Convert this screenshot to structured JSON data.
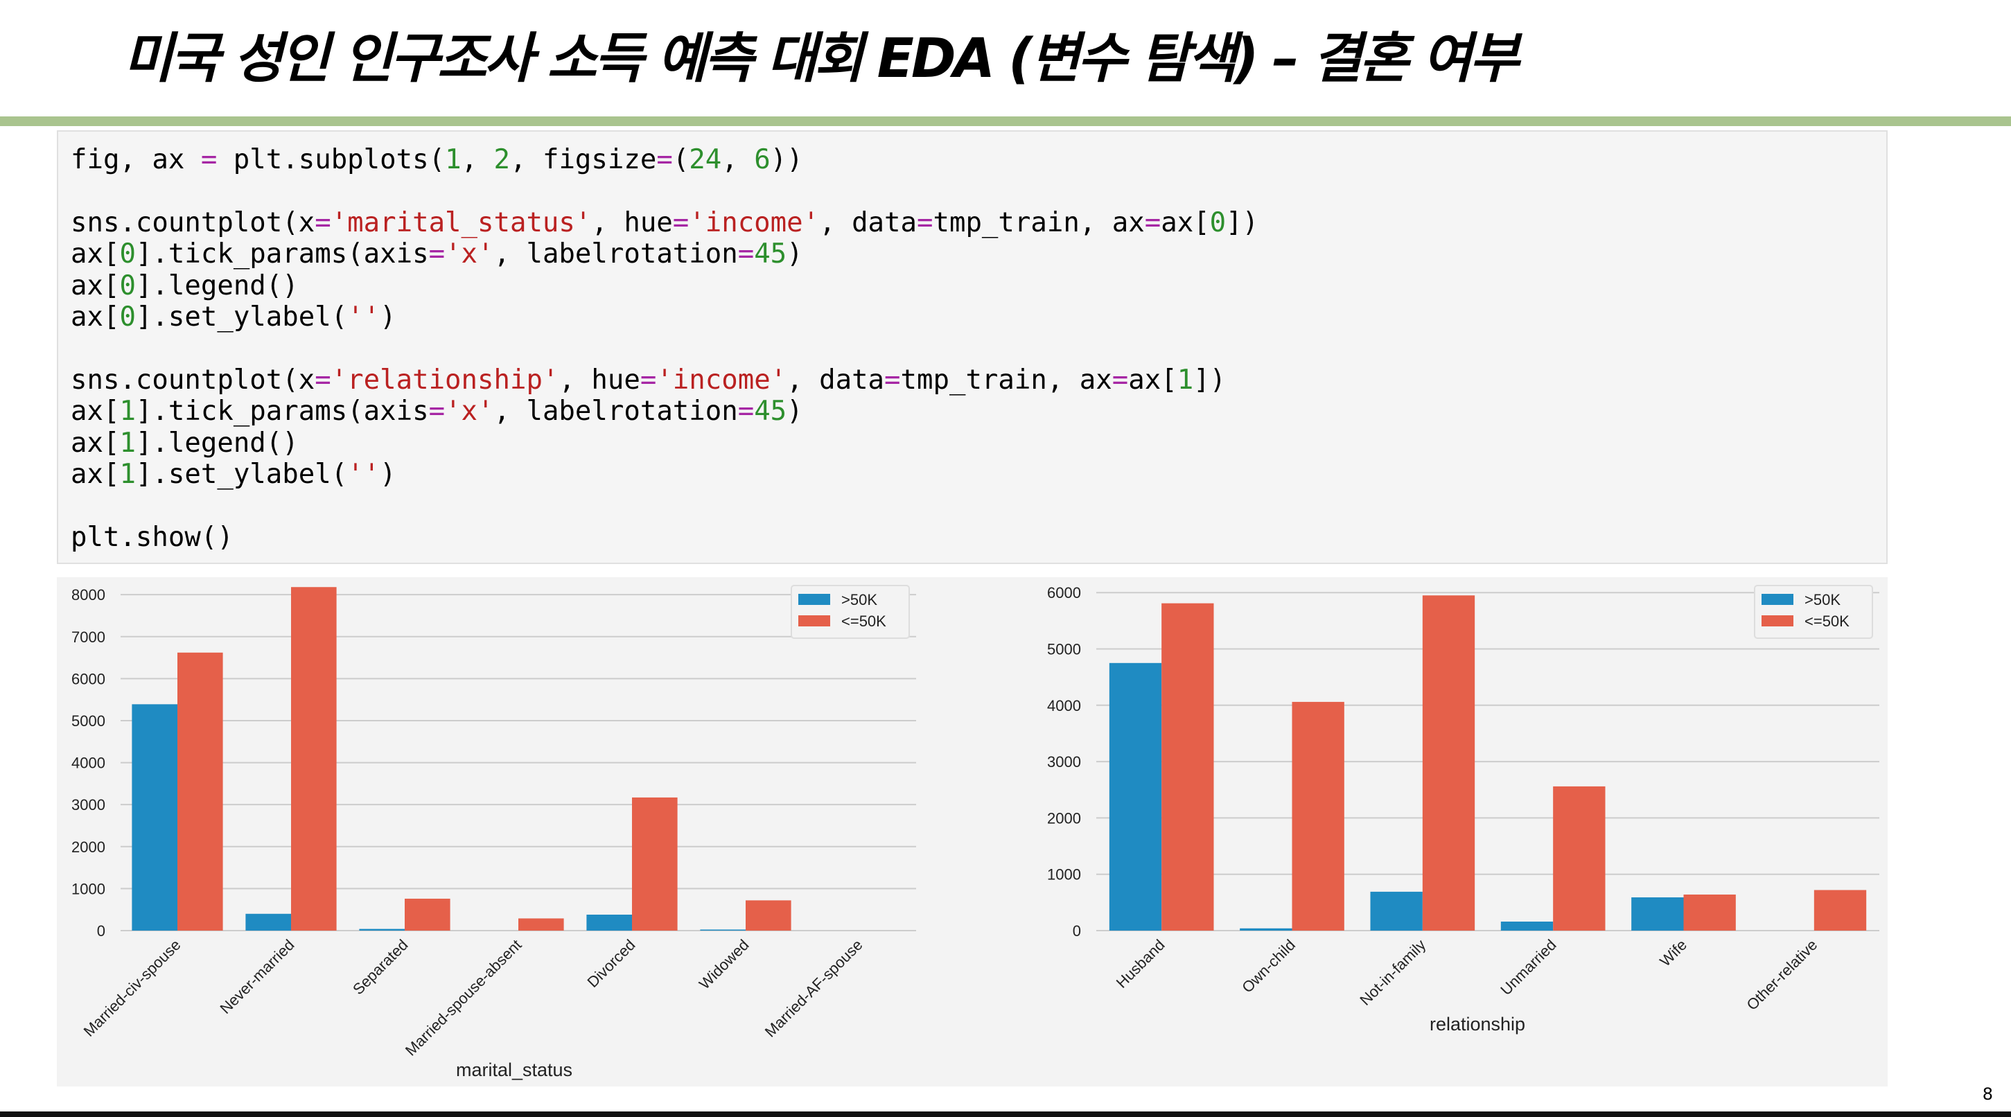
{
  "slide": {
    "title": "미국 성인 인구조사 소득 예측 대회 EDA (변수 탐색) – 결혼 여부",
    "page_number": "8"
  },
  "code_cell": {
    "lines": [
      "fig, ax = plt.subplots(1, 2, figsize=(24, 6))",
      "",
      "sns.countplot(x='marital_status', hue='income', data=tmp_train, ax=ax[0])",
      "ax[0].tick_params(axis='x', labelrotation=45)",
      "ax[0].legend()",
      "ax[0].set_ylabel('')",
      "",
      "sns.countplot(x='relationship', hue='income', data=tmp_train, ax=ax[1])",
      "ax[1].tick_params(axis='x', labelrotation=45)",
      "ax[1].legend()",
      "ax[1].set_ylabel('')",
      "",
      "plt.show()"
    ]
  },
  "colors": {
    "gt50k": "#1f8bc2",
    "le50k": "#e5604a",
    "grid": "#cccccc",
    "title_rule": "#a9c48e"
  },
  "chart_data": [
    {
      "type": "bar",
      "categories": [
        "Married-civ-spouse",
        "Never-married",
        "Separated",
        "Married-spouse-absent",
        "Divorced",
        "Widowed",
        "Married-AF-spouse"
      ],
      "series": [
        {
          "name": ">50K",
          "values": [
            5390,
            400,
            40,
            0,
            380,
            25,
            0
          ]
        },
        {
          "name": "<=50K",
          "values": [
            6620,
            8180,
            760,
            290,
            3170,
            720,
            0
          ]
        }
      ],
      "xlabel": "marital_status",
      "ylabel": "",
      "ylim": [
        0,
        8500
      ],
      "yticks": [
        0,
        1000,
        2000,
        3000,
        4000,
        5000,
        6000,
        7000,
        8000
      ],
      "grid": true,
      "legend": "top-right"
    },
    {
      "type": "bar",
      "categories": [
        "Husband",
        "Own-child",
        "Not-in-family",
        "Unmarried",
        "Wife",
        "Other-relative"
      ],
      "series": [
        {
          "name": ">50K",
          "values": [
            4750,
            40,
            690,
            160,
            590,
            0
          ]
        },
        {
          "name": "<=50K",
          "values": [
            5810,
            4060,
            5950,
            2560,
            640,
            720
          ]
        }
      ],
      "xlabel": "relationship",
      "ylabel": "",
      "ylim": [
        0,
        6200
      ],
      "yticks": [
        0,
        1000,
        2000,
        3000,
        4000,
        5000,
        6000
      ],
      "grid": true,
      "legend": "top-right"
    }
  ]
}
